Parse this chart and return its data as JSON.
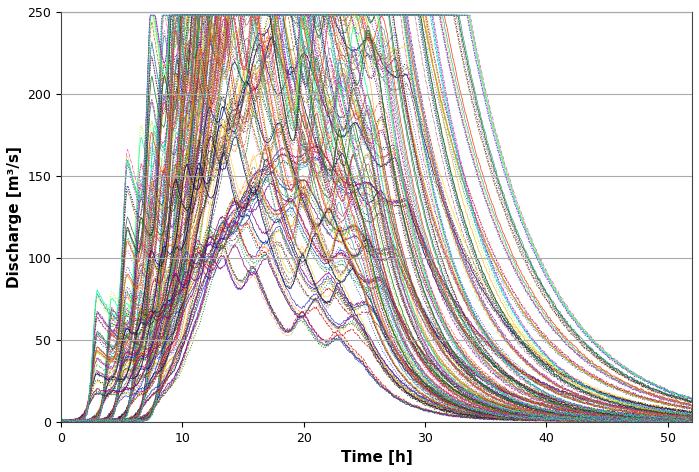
{
  "xlabel": "Time [h]",
  "ylabel": "Discharge [m³/s]",
  "xlim": [
    0,
    52
  ],
  "ylim": [
    0,
    250
  ],
  "xticks": [
    0,
    10,
    20,
    30,
    40,
    50
  ],
  "yticks": [
    0,
    50,
    100,
    150,
    200,
    250
  ],
  "n_curves": 216,
  "background_color": "#ffffff",
  "grid_color": "#aaaaaa",
  "seed": 42,
  "xlabel_fontsize": 11,
  "ylabel_fontsize": 11,
  "xlabel_bold": true,
  "ylabel_bold": true
}
